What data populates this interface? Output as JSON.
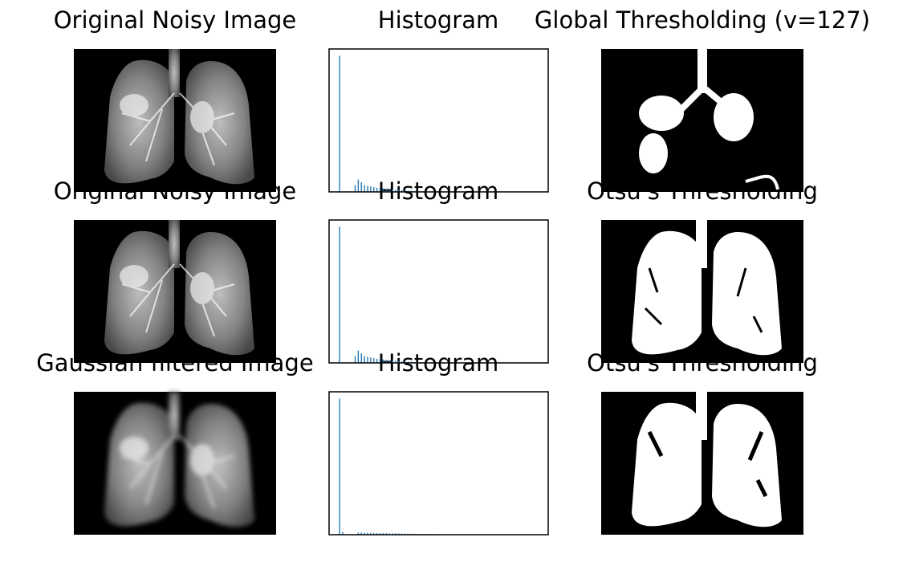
{
  "chart_data": [
    {
      "type": "image",
      "title": "Original Noisy Image"
    },
    {
      "type": "histogram",
      "title": "Histogram",
      "color": "#1f77b4",
      "xlim": [
        -12.8,
        268.8
      ],
      "ylim": [
        0,
        105
      ],
      "bins": [
        0,
        4,
        8,
        12,
        16,
        20,
        24,
        28,
        32,
        36,
        40,
        44,
        48,
        52,
        56,
        60,
        64,
        68,
        72,
        76,
        80,
        84,
        88,
        92,
        96,
        100,
        104,
        108,
        112,
        116,
        120,
        124,
        128,
        132,
        136,
        140,
        144,
        148,
        152,
        156,
        160,
        164,
        168,
        172,
        176,
        180,
        184,
        188,
        192,
        196,
        200,
        204,
        208,
        212,
        216,
        220,
        224,
        228,
        232,
        236,
        240,
        244,
        248,
        252,
        256
      ],
      "counts": [
        100,
        0,
        0,
        0,
        0,
        5,
        9,
        7,
        5,
        4.5,
        4,
        3.5,
        3,
        2.8,
        2.5,
        2.2,
        2,
        1.8,
        1.6,
        1.4,
        1.2,
        1,
        0.9,
        0.8,
        0.7,
        0.6,
        0.5,
        0.4,
        0.3,
        0.2,
        0.1,
        0,
        0,
        0,
        0,
        0,
        0,
        0,
        0,
        0,
        0,
        0,
        0,
        0,
        0,
        0,
        0,
        0,
        0,
        0,
        0,
        0,
        0,
        0,
        0,
        0,
        0,
        0,
        0,
        0,
        0,
        0,
        0,
        0
      ]
    },
    {
      "type": "image",
      "title": "Global Thresholding (v=127)"
    },
    {
      "type": "image",
      "title": "Original Noisy Image"
    },
    {
      "type": "histogram",
      "title": "Histogram",
      "color": "#1f77b4",
      "xlim": [
        -12.8,
        268.8
      ],
      "ylim": [
        0,
        105
      ],
      "bins": [
        0,
        4,
        8,
        12,
        16,
        20,
        24,
        28,
        32,
        36,
        40,
        44,
        48,
        52,
        56,
        60,
        64,
        68,
        72,
        76,
        80,
        84,
        88,
        92,
        96,
        100,
        104,
        108,
        112,
        116,
        120,
        124,
        128,
        132,
        136,
        140,
        144,
        148,
        152,
        156,
        160,
        164,
        168,
        172,
        176,
        180,
        184,
        188,
        192,
        196,
        200,
        204,
        208,
        212,
        216,
        220,
        224,
        228,
        232,
        236,
        240,
        244,
        248,
        252,
        256
      ],
      "counts": [
        100,
        0,
        0,
        0,
        0,
        5,
        9,
        7,
        5,
        4.5,
        4,
        3.5,
        3,
        2.8,
        2.5,
        2.2,
        2,
        1.8,
        1.6,
        1.4,
        1.2,
        1,
        0.9,
        0.8,
        0.7,
        0.6,
        0.5,
        0.4,
        0.3,
        0.2,
        0.1,
        0,
        0,
        0,
        0,
        0,
        0,
        0,
        0,
        0,
        0,
        0,
        0,
        0,
        0,
        0,
        0,
        0,
        0,
        0,
        0,
        0,
        0,
        0,
        0,
        0,
        0,
        0,
        0,
        0,
        0,
        0,
        0,
        0
      ]
    },
    {
      "type": "image",
      "title": "Otsu's Thresholding"
    },
    {
      "type": "image",
      "title": "Gaussian filtered Image"
    },
    {
      "type": "histogram",
      "title": "Histogram",
      "color": "#1f77b4",
      "xlim": [
        -12.8,
        268.8
      ],
      "ylim": [
        0,
        105
      ],
      "bins": [
        0,
        4,
        8,
        12,
        16,
        20,
        24,
        28,
        32,
        36,
        40,
        44,
        48,
        52,
        56,
        60,
        64,
        68,
        72,
        76,
        80,
        84,
        88,
        92,
        96,
        100,
        104,
        108,
        112,
        116,
        120,
        124,
        128,
        132,
        136,
        140,
        144,
        148,
        152,
        156,
        160,
        164,
        168,
        172,
        176,
        180,
        184,
        188,
        192,
        196,
        200,
        204,
        208,
        212,
        216,
        220,
        224,
        228,
        232,
        236,
        240,
        244,
        248,
        252,
        256
      ],
      "counts": [
        100,
        2,
        0.3,
        0.3,
        0.3,
        0.3,
        1.5,
        1.5,
        1.4,
        1.4,
        1.3,
        1.3,
        1.2,
        1.2,
        1.1,
        1.1,
        1,
        1,
        1,
        0.9,
        0.9,
        0.8,
        0.8,
        0.7,
        0.7,
        0.6,
        0.6,
        0.5,
        0.5,
        0.5,
        0.5,
        0,
        0,
        0,
        0,
        0,
        0,
        0,
        0,
        0,
        0,
        0,
        0,
        0,
        0,
        0,
        0,
        0,
        0,
        0,
        0,
        0,
        0,
        0,
        0,
        0,
        0,
        0,
        0,
        0,
        0,
        0,
        0,
        0
      ]
    },
    {
      "type": "image",
      "title": "Otsu's Thresholding"
    }
  ]
}
